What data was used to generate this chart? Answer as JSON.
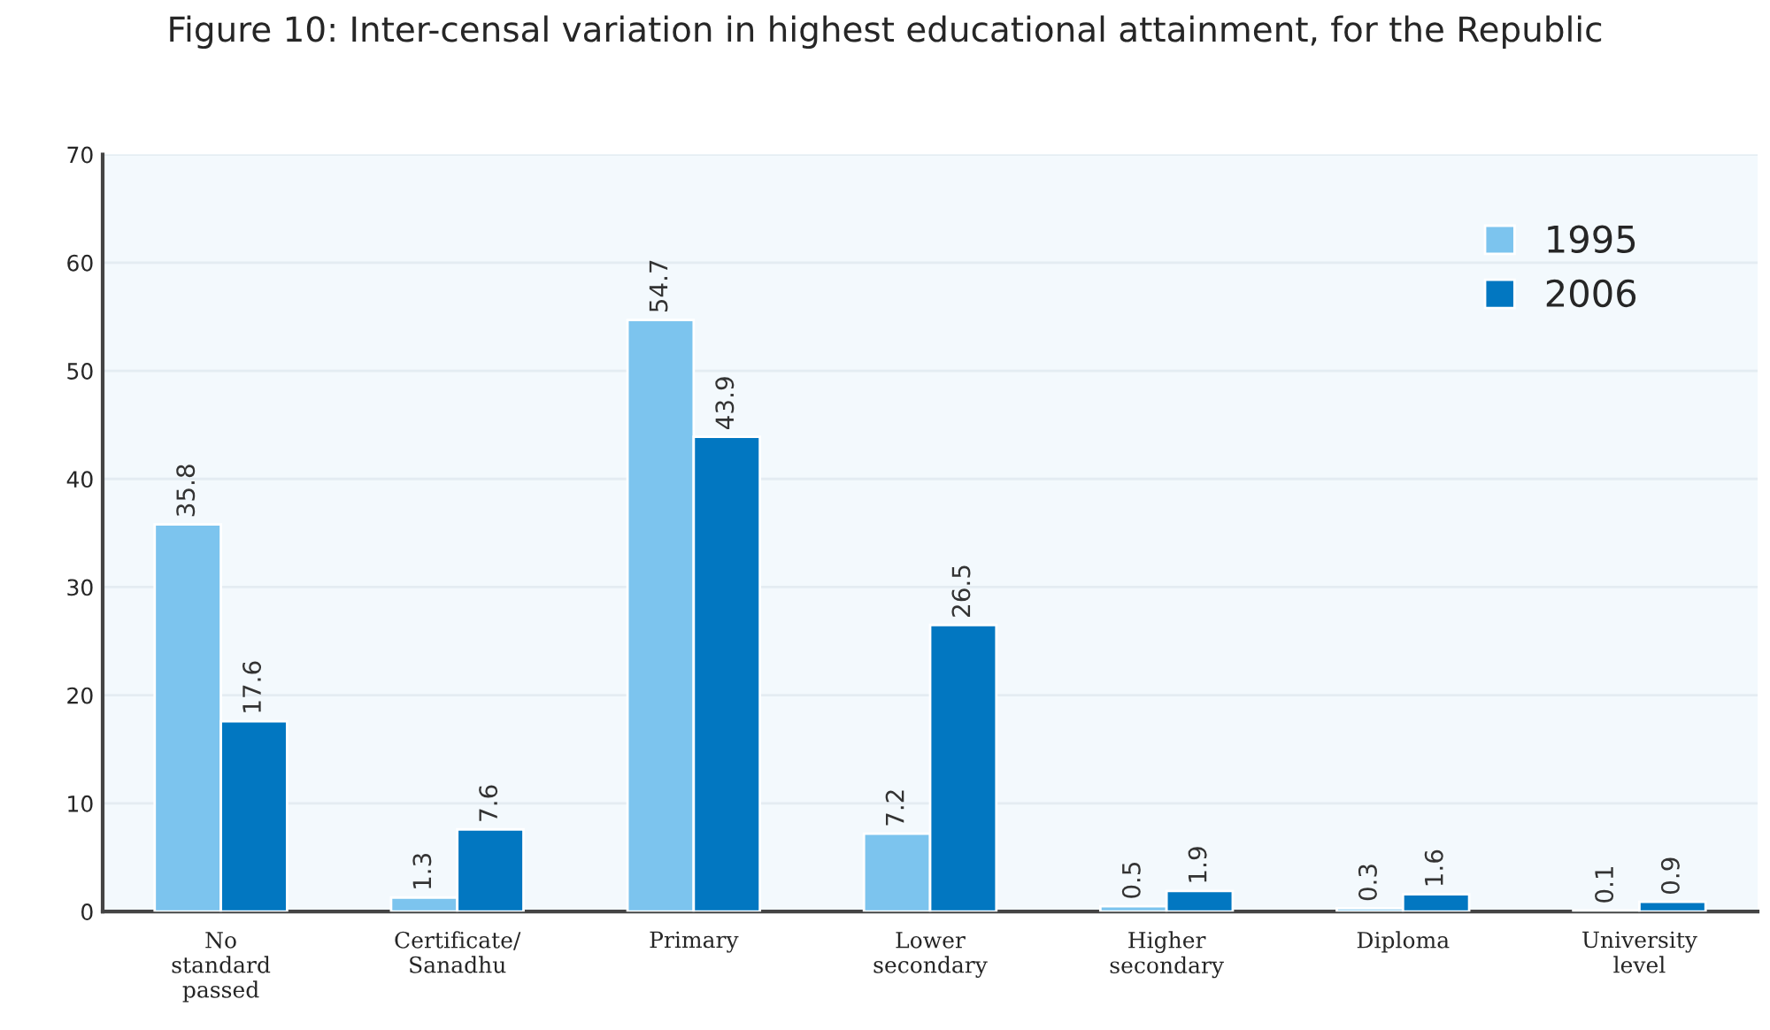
{
  "chart_data": {
    "type": "bar",
    "title": "Figure 10: Inter-censal variation in highest educational attainment, for the Republic",
    "categories": [
      "No\nstandard\npassed",
      "Certificate/\nSanadhu",
      "Primary",
      "Lower\nsecondary",
      "Higher\nsecondary",
      "Diploma",
      "University\nlevel"
    ],
    "series": [
      {
        "name": "1995",
        "color": "#7cc4ee",
        "values": [
          35.8,
          1.3,
          54.7,
          7.2,
          0.5,
          0.3,
          0.1
        ]
      },
      {
        "name": "2006",
        "color": "#0277c1",
        "values": [
          17.6,
          7.6,
          43.9,
          26.5,
          1.9,
          1.6,
          0.9
        ]
      }
    ],
    "ylim": [
      0,
      70
    ],
    "yticks": [
      0,
      10,
      20,
      30,
      40,
      50,
      60,
      70
    ],
    "grid": "y",
    "legend": "top right",
    "data_labels": true
  }
}
